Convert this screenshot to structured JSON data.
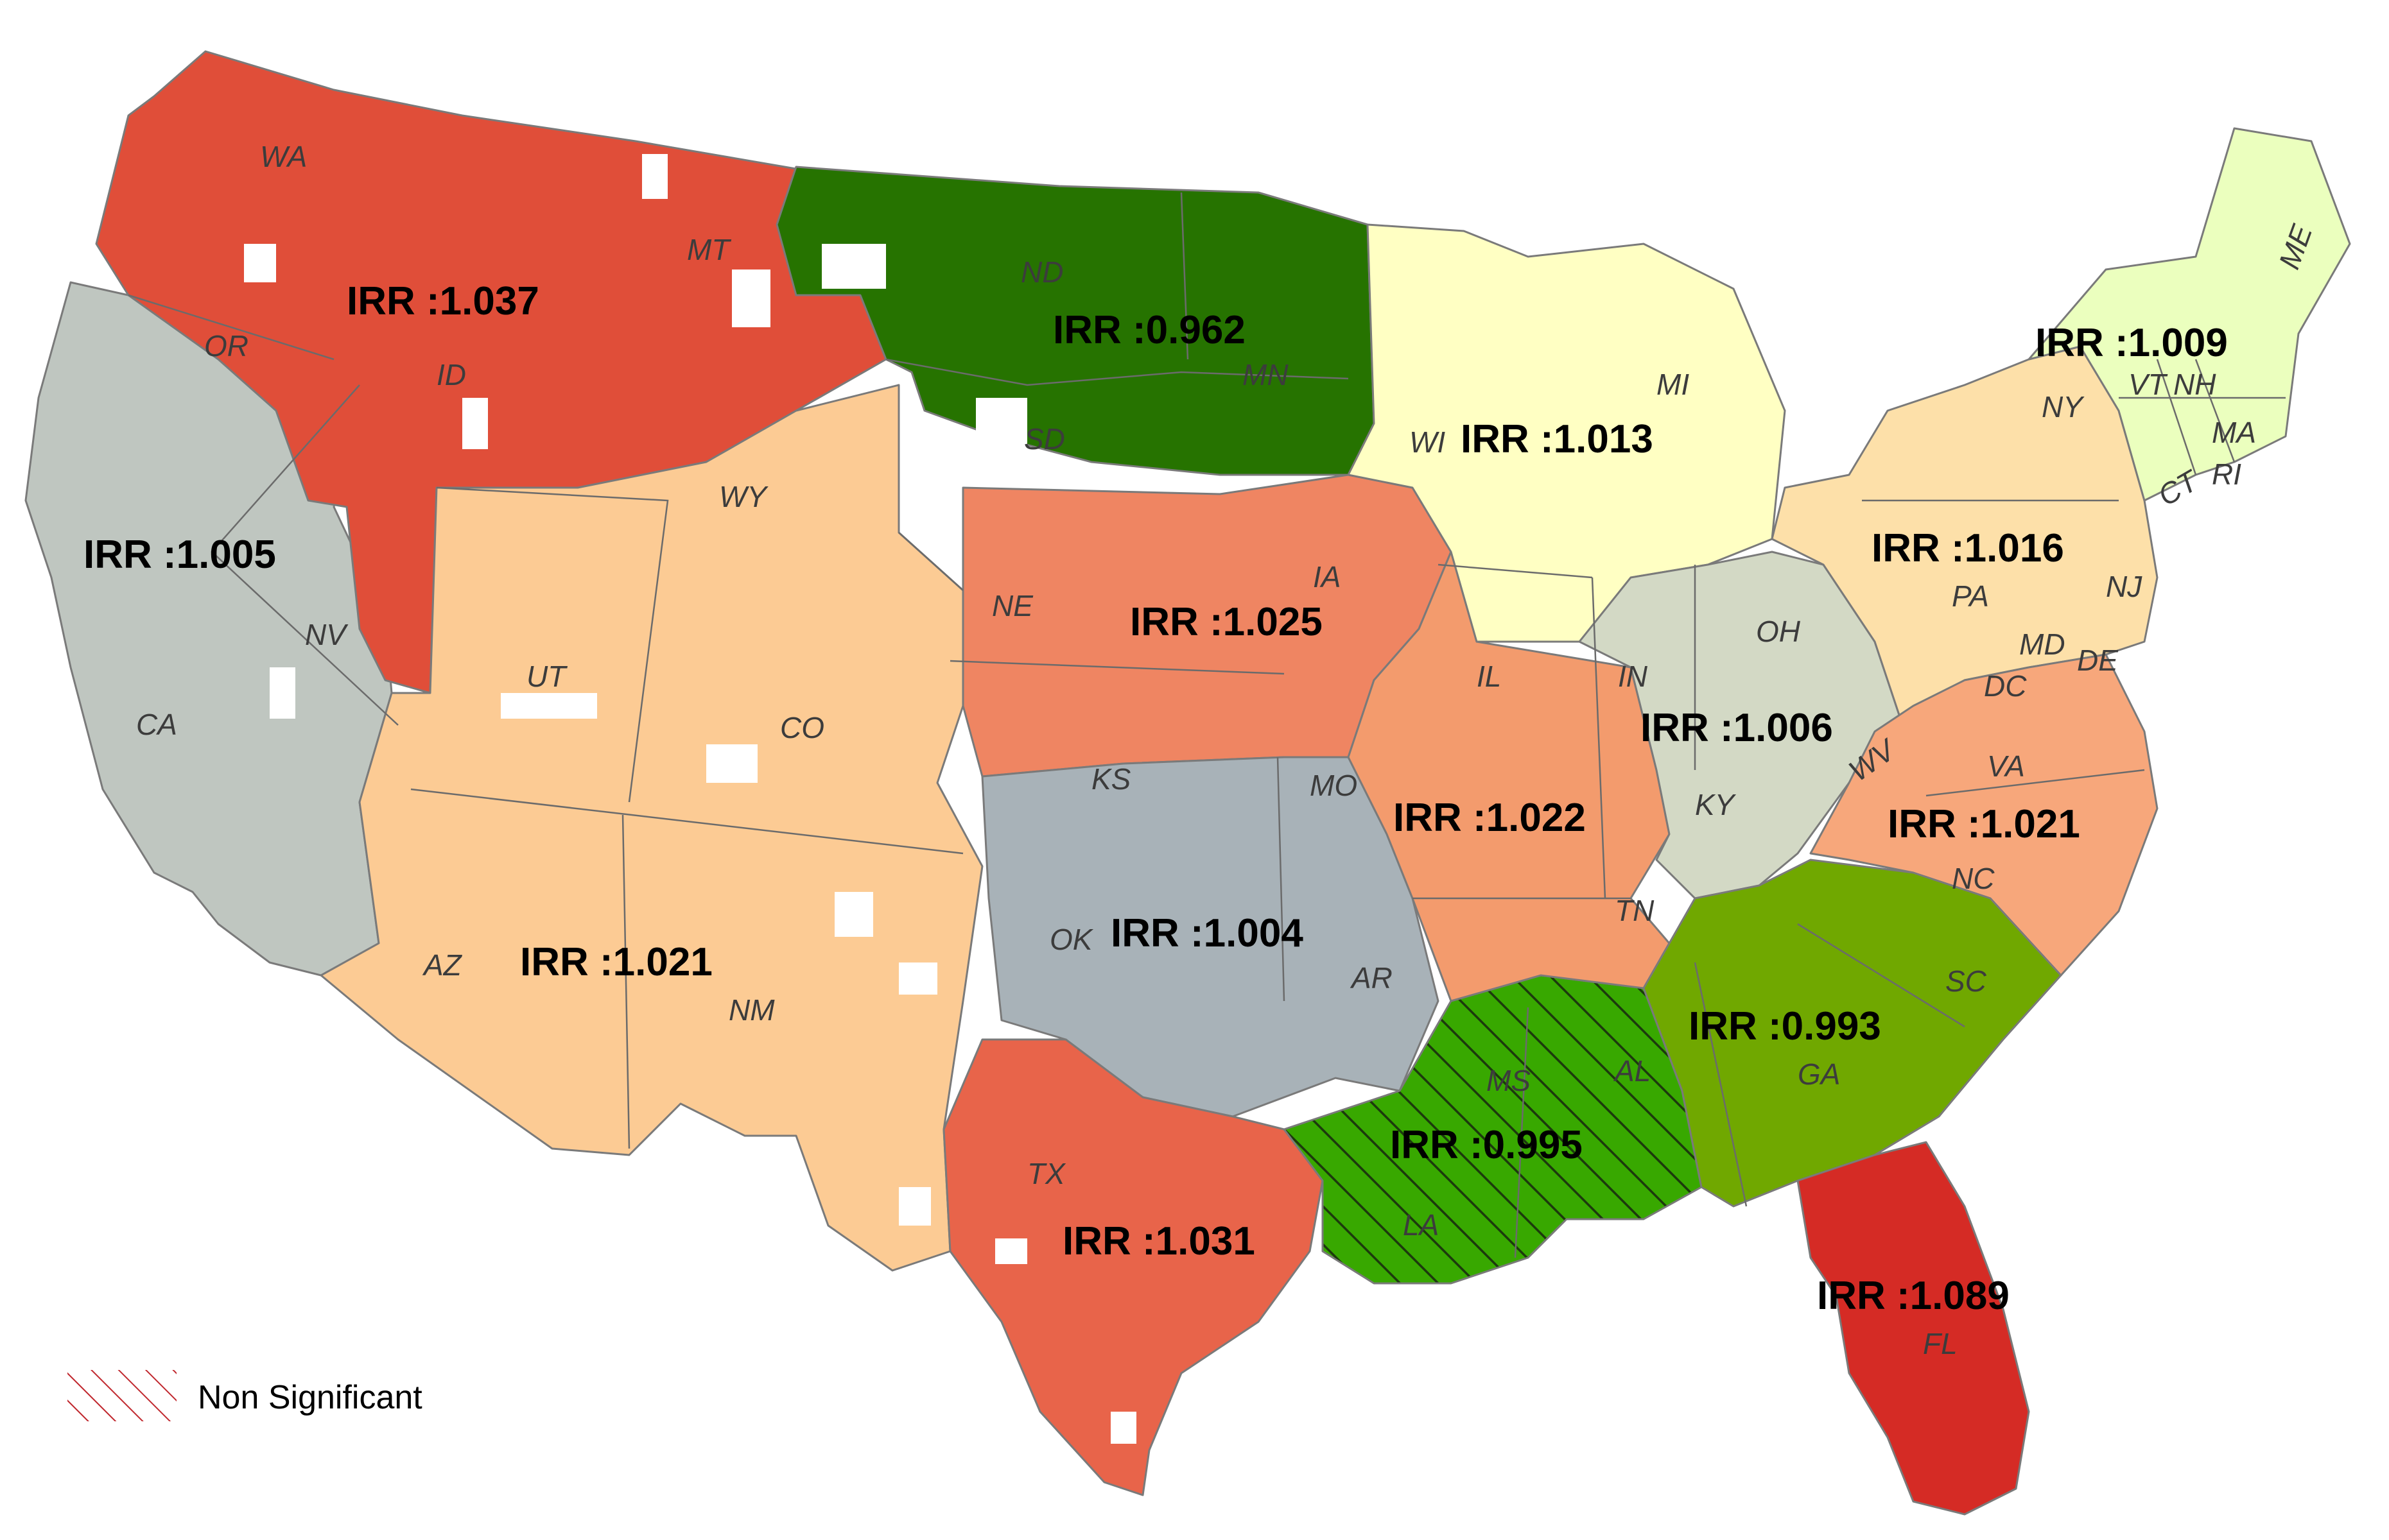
{
  "legend": {
    "hatch_label": "Non Significant",
    "hatch_color": "#c0272d"
  },
  "regions": [
    {
      "id": "northwest",
      "irr_label": "IRR :1.037",
      "color": "#e04e39",
      "significant": true
    },
    {
      "id": "west-north-central",
      "irr_label": "IRR :0.962",
      "color": "#267300",
      "significant": true
    },
    {
      "id": "east-north-central",
      "irr_label": "IRR :1.013",
      "color": "#ffffc3",
      "significant": true
    },
    {
      "id": "northeast",
      "irr_label": "IRR :1.009",
      "color": "#ebffbe",
      "significant": true
    },
    {
      "id": "west",
      "irr_label": "IRR :1.005",
      "color": "#bfc6c0",
      "significant": true
    },
    {
      "id": "southwest",
      "irr_label": "IRR :1.021",
      "color": "#fccb94",
      "significant": true
    },
    {
      "id": "plains",
      "irr_label": "IRR :1.025",
      "color": "#ef8562",
      "significant": true
    },
    {
      "id": "mid-atlantic",
      "irr_label": "IRR :1.016",
      "color": "#fde0a9",
      "significant": true
    },
    {
      "id": "midwest-south",
      "irr_label": "IRR :1.022",
      "color": "#f39b6d",
      "significant": true
    },
    {
      "id": "ohio-valley",
      "irr_label": "IRR :1.006",
      "color": "#d3d9c5",
      "significant": true
    },
    {
      "id": "southeast-atlantic",
      "irr_label": "IRR :1.021",
      "color": "#f7a77b",
      "significant": true
    },
    {
      "id": "south-central",
      "irr_label": "IRR :1.004",
      "color": "#a8b2b8",
      "significant": true
    },
    {
      "id": "texas",
      "irr_label": "IRR :1.031",
      "color": "#e8644a",
      "significant": true
    },
    {
      "id": "deep-south",
      "irr_label": "IRR :0.995",
      "color": "#38a800",
      "significant": false
    },
    {
      "id": "southeast",
      "irr_label": "IRR :0.993",
      "color": "#70a800",
      "significant": true
    },
    {
      "id": "florida",
      "irr_label": "IRR :1.089",
      "color": "#d52b25",
      "significant": true
    }
  ],
  "states": [
    "WA",
    "OR",
    "CA",
    "NV",
    "ID",
    "MT",
    "WY",
    "UT",
    "CO",
    "AZ",
    "NM",
    "ND",
    "SD",
    "NE",
    "KS",
    "OK",
    "TX",
    "MN",
    "IA",
    "MO",
    "AR",
    "LA",
    "WI",
    "IL",
    "MS",
    "AL",
    "TN",
    "KY",
    "IN",
    "MI",
    "OH",
    "WV",
    "VA",
    "NC",
    "SC",
    "GA",
    "FL",
    "PA",
    "NY",
    "VT",
    "NH",
    "ME",
    "MA",
    "CT",
    "RI",
    "NJ",
    "DE",
    "MD",
    "DC"
  ]
}
